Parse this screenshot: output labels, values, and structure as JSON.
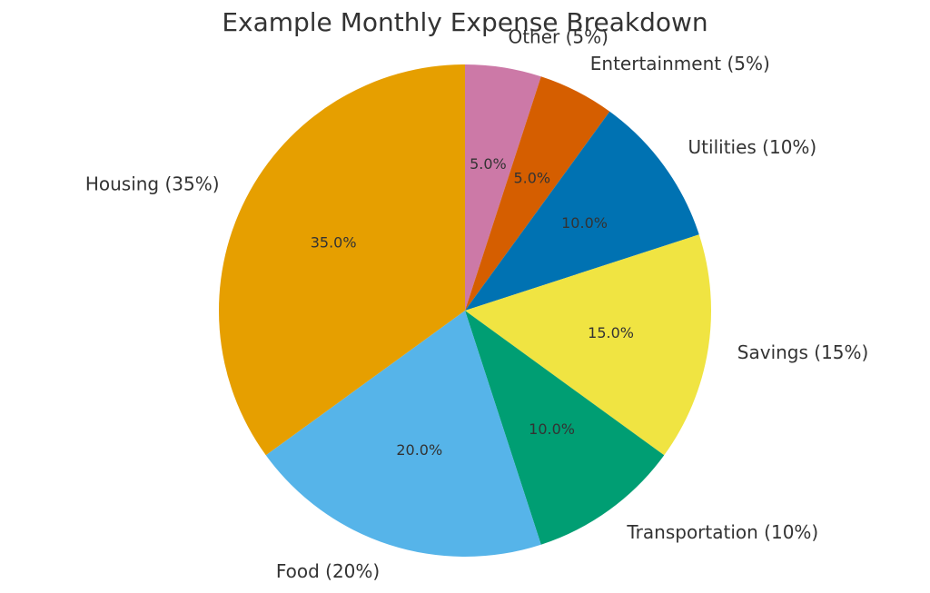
{
  "chart_data": {
    "type": "pie",
    "title": "Example Monthly Expense Breakdown",
    "slices": [
      {
        "label": "Other (5%)",
        "value": 5,
        "pct_label": "5.0%",
        "color": "#CC79A7"
      },
      {
        "label": "Entertainment (5%)",
        "value": 5,
        "pct_label": "5.0%",
        "color": "#D55E00"
      },
      {
        "label": "Utilities (10%)",
        "value": 10,
        "pct_label": "10.0%",
        "color": "#0072B2"
      },
      {
        "label": "Savings (15%)",
        "value": 15,
        "pct_label": "15.0%",
        "color": "#F0E442"
      },
      {
        "label": "Transportation (10%)",
        "value": 10,
        "pct_label": "10.0%",
        "color": "#009E73"
      },
      {
        "label": "Food (20%)",
        "value": 20,
        "pct_label": "20.0%",
        "color": "#56B4E9"
      },
      {
        "label": "Housing (35%)",
        "value": 35,
        "pct_label": "35.0%",
        "color": "#E69F00"
      }
    ],
    "start_angle": "top",
    "direction": "clockwise",
    "legend": "none"
  }
}
